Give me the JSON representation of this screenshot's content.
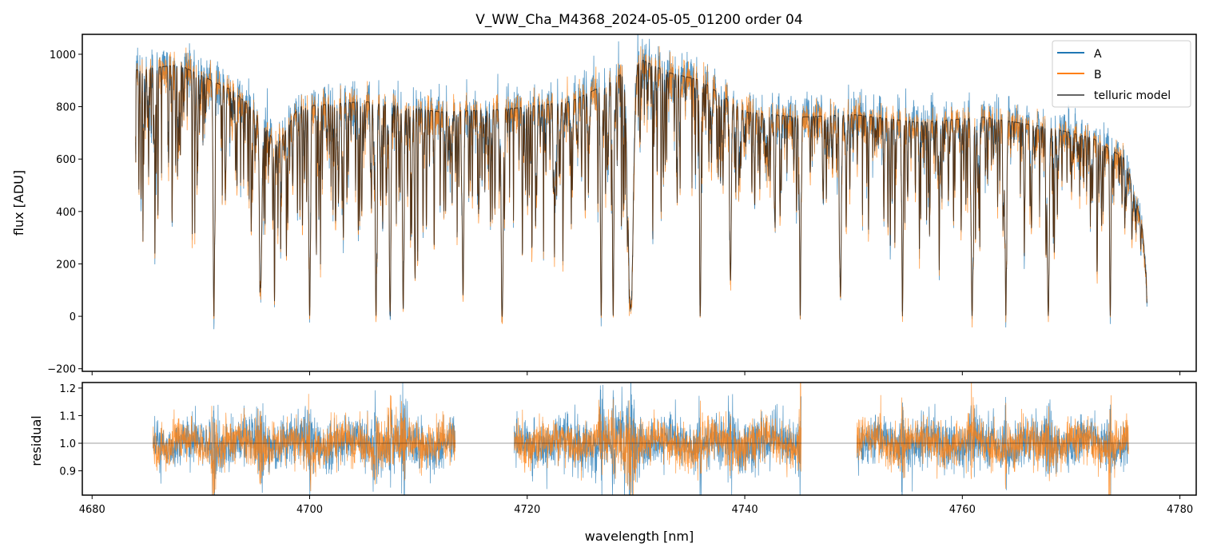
{
  "chart_data": [
    {
      "type": "line",
      "title": "V_WW_Cha_M4368_2024-05-05_01200  order 04",
      "xlabel": "",
      "ylabel": "flux [ADU]",
      "xlim": [
        4679.1,
        4781.5
      ],
      "ylim": [
        -210,
        1076
      ],
      "xticks": [
        4680,
        4700,
        4720,
        4740,
        4760,
        4780
      ],
      "yticks": [
        -200,
        0,
        200,
        400,
        600,
        800,
        1000
      ],
      "legend": {
        "placement": "top-right",
        "entries": [
          "A",
          "B",
          "telluric model"
        ]
      },
      "series": [
        {
          "name": "A",
          "color": "#1f77b4",
          "range": [
            4684.0,
            4777.0
          ],
          "noise_frac": 0.07
        },
        {
          "name": "B",
          "color": "#ff7f0e",
          "range": [
            4684.0,
            4777.0
          ],
          "noise_frac": 0.06
        },
        {
          "name": "telluric model",
          "color": "#000000",
          "range": [
            4684.0,
            4777.0
          ],
          "noise_frac": 0
        }
      ],
      "continuum": [
        [
          4684,
          940
        ],
        [
          4688,
          960
        ],
        [
          4691,
          900
        ],
        [
          4693,
          860
        ],
        [
          4695,
          780
        ],
        [
          4697,
          650
        ],
        [
          4699,
          800
        ],
        [
          4705,
          820
        ],
        [
          4712,
          780
        ],
        [
          4718,
          790
        ],
        [
          4724,
          820
        ],
        [
          4728,
          900
        ],
        [
          4730,
          990
        ],
        [
          4733,
          930
        ],
        [
          4736,
          900
        ],
        [
          4740,
          780
        ],
        [
          4745,
          760
        ],
        [
          4750,
          770
        ],
        [
          4756,
          740
        ],
        [
          4762,
          760
        ],
        [
          4768,
          720
        ],
        [
          4772,
          680
        ],
        [
          4775,
          600
        ],
        [
          4776.5,
          350
        ],
        [
          4777,
          150
        ]
      ],
      "strong_lines": [
        [
          4691.2,
          1.0,
          0.1
        ],
        [
          4695.5,
          0.85,
          0.15
        ],
        [
          4700.0,
          1.0,
          0.1
        ],
        [
          4706.1,
          1.0,
          0.1
        ],
        [
          4707.4,
          1.0,
          0.1
        ],
        [
          4708.6,
          0.95,
          0.1
        ],
        [
          4714.1,
          0.9,
          0.1
        ],
        [
          4717.7,
          1.0,
          0.12
        ],
        [
          4726.8,
          1.0,
          0.1
        ],
        [
          4727.9,
          1.0,
          0.1
        ],
        [
          4729.5,
          0.97,
          0.35
        ],
        [
          4735.9,
          1.0,
          0.08
        ],
        [
          4738.7,
          0.8,
          0.1
        ],
        [
          4745.1,
          1.0,
          0.08
        ],
        [
          4748.8,
          0.9,
          0.1
        ],
        [
          4754.5,
          1.0,
          0.08
        ],
        [
          4760.9,
          1.0,
          0.12
        ],
        [
          4764.0,
          1.0,
          0.08
        ],
        [
          4767.9,
          1.0,
          0.12
        ],
        [
          4773.6,
          1.0,
          0.08
        ]
      ],
      "weak_line_count": 700
    },
    {
      "type": "line",
      "title": "",
      "xlabel": "wavelength [nm]",
      "ylabel": "residual",
      "xlim": [
        4679.1,
        4781.5
      ],
      "ylim": [
        0.812,
        1.22
      ],
      "xticks": [
        4680,
        4700,
        4720,
        4740,
        4760,
        4780
      ],
      "yticks": [
        0.9,
        1.0,
        1.1,
        1.2
      ],
      "reference_line": 1.0,
      "segments": [
        [
          4685.6,
          4713.4
        ],
        [
          4718.8,
          4745.2
        ],
        [
          4750.3,
          4775.3
        ]
      ],
      "series": [
        {
          "name": "A",
          "color": "#1f77b4",
          "noise_sd": 0.045
        },
        {
          "name": "B",
          "color": "#ff7f0e",
          "noise_sd": 0.04
        }
      ]
    }
  ]
}
